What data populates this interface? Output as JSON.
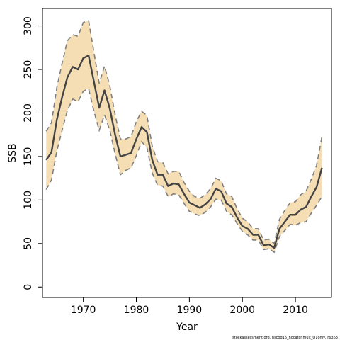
{
  "chart_data": {
    "type": "line",
    "xlabel": "Year",
    "ylabel": "SSB",
    "xlim": [
      1962.3,
      2016.8
    ],
    "ylim": [
      -12,
      320
    ],
    "xticks": [
      1970,
      1980,
      1990,
      2000,
      2010
    ],
    "yticks": [
      0,
      50,
      100,
      150,
      200,
      250,
      300
    ],
    "grid": false,
    "band_color": "#f5deb3",
    "line_color": "#444444",
    "bound_color": "#7f7f7f",
    "caption": "stockassessment.org, nscod15_nocatchmult_Q1only, r6363",
    "x": [
      1963,
      1964,
      1965,
      1966,
      1967,
      1968,
      1969,
      1970,
      1971,
      1972,
      1973,
      1974,
      1975,
      1976,
      1977,
      1978,
      1979,
      1980,
      1981,
      1982,
      1983,
      1984,
      1985,
      1986,
      1987,
      1988,
      1989,
      1990,
      1991,
      1992,
      1993,
      1994,
      1995,
      1996,
      1997,
      1998,
      1999,
      2000,
      2001,
      2002,
      2003,
      2004,
      2005,
      2006,
      2007,
      2008,
      2009,
      2010,
      2011,
      2012,
      2013,
      2014,
      2015
    ],
    "series": [
      {
        "name": "",
        "values": [
          146,
          155,
          192,
          218,
          241,
          253,
          250,
          263,
          266,
          236,
          206,
          226,
          205,
          175,
          150,
          152,
          154,
          170,
          184,
          178,
          146,
          129,
          129,
          116,
          119,
          118,
          107,
          97,
          94,
          91,
          95,
          101,
          113,
          110,
          96,
          92,
          80,
          70,
          67,
          60,
          60,
          48,
          49,
          45,
          67,
          75,
          83,
          83,
          89,
          92,
          104,
          115,
          137
        ]
      },
      {
        "name": "",
        "values": [
          179,
          189,
          229,
          257,
          283,
          290,
          288,
          304,
          306,
          270,
          234,
          254,
          231,
          198,
          170,
          170,
          173,
          190,
          202,
          197,
          162,
          144,
          143,
          130,
          133,
          133,
          120,
          110,
          104,
          102,
          106,
          113,
          125,
          122,
          107,
          104,
          90,
          79,
          75,
          67,
          67,
          54,
          55,
          50,
          78,
          88,
          97,
          98,
          106,
          110,
          124,
          140,
          173
        ]
      }
    ],
    "lower": [
      112,
      123,
      156,
      180,
      203,
      216,
      213,
      225,
      228,
      202,
      180,
      198,
      180,
      153,
      129,
      134,
      137,
      151,
      167,
      160,
      131,
      117,
      116,
      104,
      107,
      106,
      96,
      87,
      84,
      82,
      86,
      92,
      101,
      100,
      87,
      83,
      73,
      64,
      60,
      54,
      54,
      43,
      44,
      40,
      58,
      65,
      72,
      71,
      74,
      75,
      85,
      94,
      104
    ]
  }
}
